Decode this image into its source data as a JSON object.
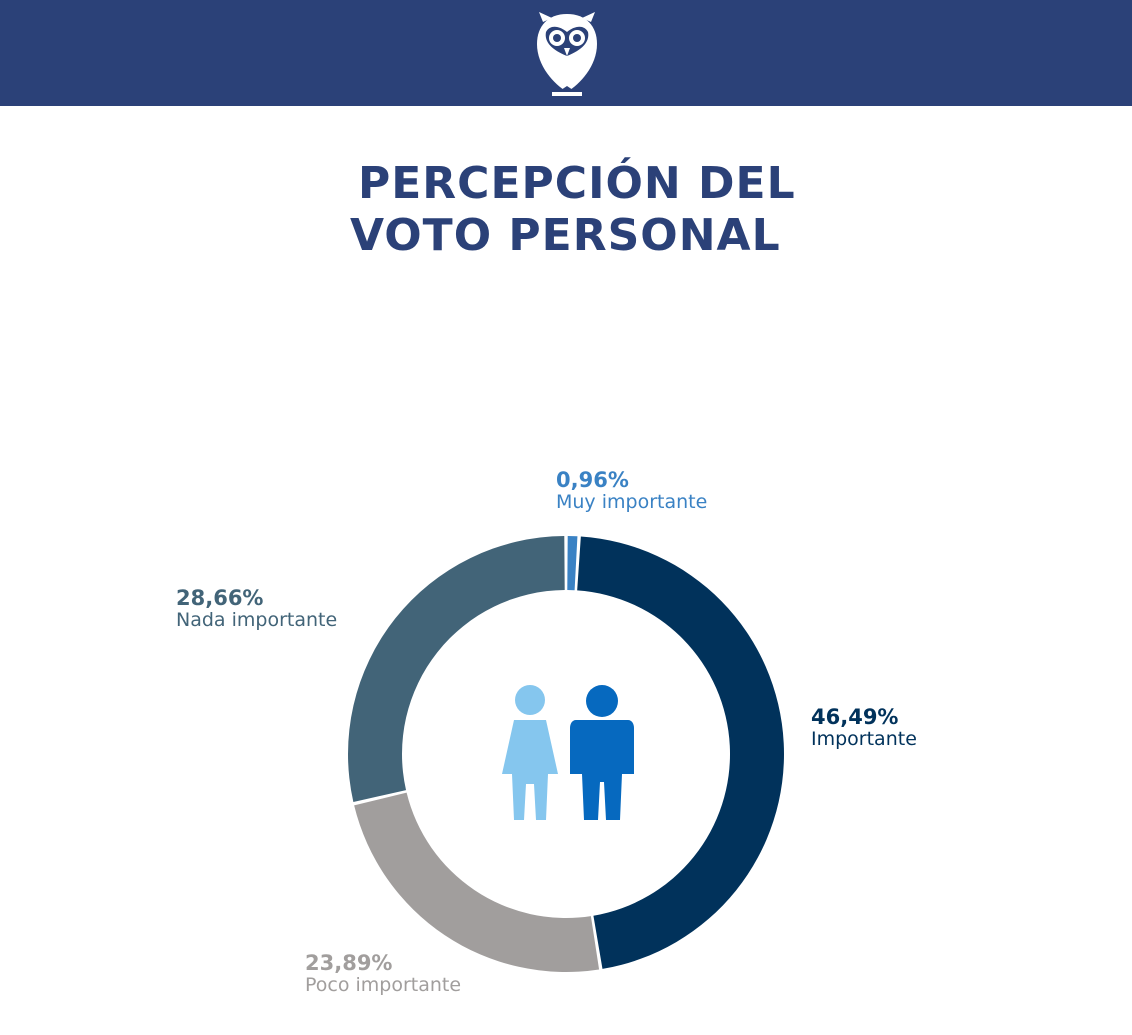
{
  "header": {
    "logo_icon": "owl-icon",
    "background_color": "#2b4178"
  },
  "title_lines": [
    "PERCEPCIÓN DEL",
    "VOTO PERSONAL"
  ],
  "center_icon": "people-icon",
  "chart_data": {
    "type": "pie",
    "donut": true,
    "title": "PERCEPCIÓN DEL VOTO PERSONAL",
    "start": "top",
    "direction": "clockwise",
    "slices": [
      {
        "label": "Muy importante",
        "value": 0.96,
        "display": "0,96%",
        "color": "#3a82c4"
      },
      {
        "label": "Importante",
        "value": 46.49,
        "display": "46,49%",
        "color": "#01325b"
      },
      {
        "label": "Poco importante",
        "value": 23.89,
        "display": "23,89%",
        "color": "#a19e9d"
      },
      {
        "label": "Nada importante",
        "value": 28.66,
        "display": "28,66%",
        "color": "#426478"
      }
    ],
    "legend": "none",
    "grid": false
  },
  "figures": {
    "woman_color": "#85c6ee",
    "man_color": "#0669bf"
  }
}
